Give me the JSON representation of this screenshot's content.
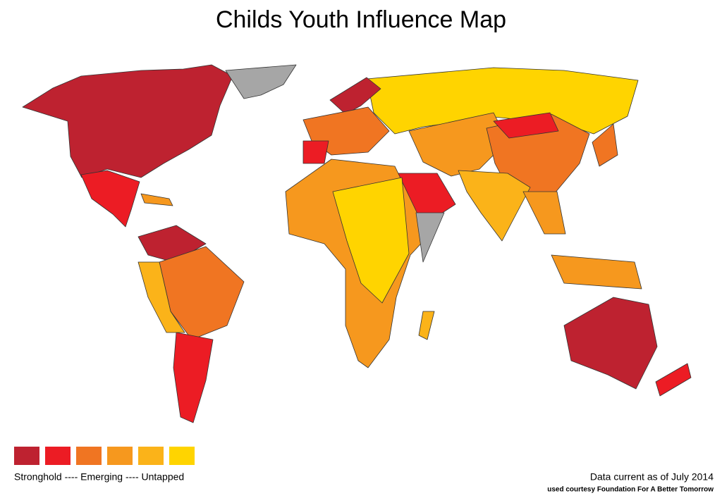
{
  "title": "Childs Youth Influence Map",
  "legend": {
    "colors": [
      "#be2230",
      "#ec1c24",
      "#f07522",
      "#f6981e",
      "#fbb319",
      "#ffd400"
    ],
    "label": "Stronghold ---- Emerging ---- Untapped"
  },
  "no_data_color": "#a6a6a6",
  "footnote": {
    "line1": "Data current as of July 2014",
    "line2": "used courtesy Foundation For A Better Tomorrow"
  }
}
